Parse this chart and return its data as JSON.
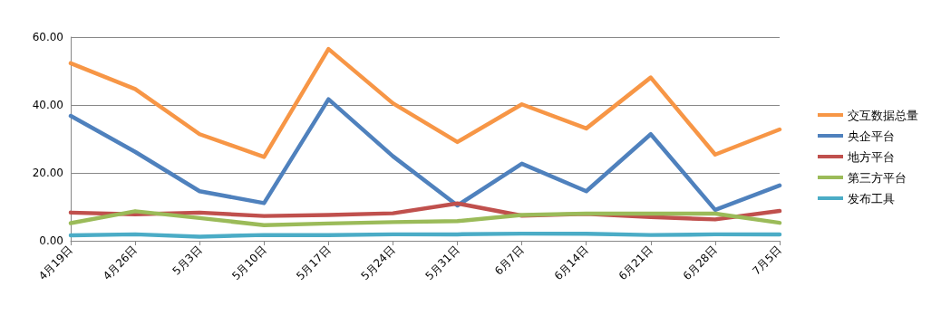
{
  "chart_data": {
    "type": "line",
    "categories": [
      "4月19日",
      "4月26日",
      "5月3日",
      "5月10日",
      "5月17日",
      "5月24日",
      "5月31日",
      "6月7日",
      "6月14日",
      "6月21日",
      "6月28日",
      "7月5日"
    ],
    "series": [
      {
        "name": "交互数据总量",
        "color": "#f79646",
        "values": [
          52.3,
          44.7,
          31.4,
          24.7,
          56.5,
          40.5,
          29.1,
          40.2,
          33.1,
          48.1,
          25.4,
          32.8
        ]
      },
      {
        "name": "央企平台",
        "color": "#4f81bd",
        "values": [
          36.8,
          26.2,
          14.6,
          11.1,
          41.7,
          24.9,
          10.4,
          22.7,
          14.6,
          31.4,
          9.1,
          16.3
        ]
      },
      {
        "name": "地方平台",
        "color": "#c0504d",
        "values": [
          8.3,
          7.8,
          8.3,
          7.3,
          7.6,
          8.1,
          11,
          7.4,
          7.9,
          7,
          6.3,
          8.8
        ]
      },
      {
        "name": "第三方平台",
        "color": "#9bbb59",
        "values": [
          5.2,
          8.7,
          6.7,
          4.6,
          5.1,
          5.5,
          5.8,
          7.6,
          8,
          8,
          8,
          5.3
        ]
      },
      {
        "name": "发布工具",
        "color": "#4bacc6",
        "values": [
          1.6,
          1.9,
          1.2,
          1.7,
          1.7,
          1.9,
          1.9,
          2.1,
          2.1,
          1.7,
          1.9,
          1.9
        ]
      }
    ],
    "ylim": [
      0,
      60
    ],
    "yticks": [
      {
        "value": 0,
        "label": "0.00"
      },
      {
        "value": 20,
        "label": "20.00"
      },
      {
        "value": 40,
        "label": "40.00"
      },
      {
        "value": 60,
        "label": "60.00"
      }
    ],
    "grid": "y",
    "legend": "right",
    "marker": "none",
    "line_style": "solid"
  }
}
